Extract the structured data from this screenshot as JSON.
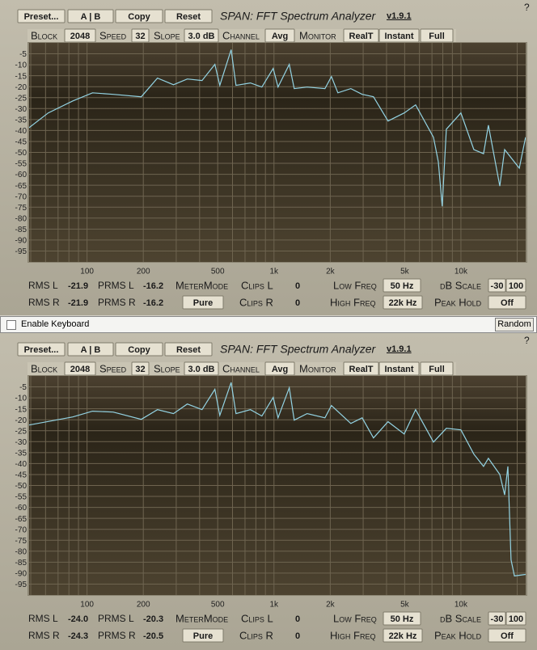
{
  "panels": [
    {
      "preset": "Preset...",
      "ab": "A | B",
      "copy": "Copy",
      "reset": "Reset",
      "title": "SPAN: FFT Spectrum Analyzer",
      "version": "v1.9.1",
      "help": "?",
      "block_label": "Block",
      "block": "2048",
      "speed_label": "Speed",
      "speed": "32",
      "slope_label": "Slope",
      "slope": "3.0 dB",
      "channel_label": "Channel",
      "channel": "Avg",
      "monitor_label": "Monitor",
      "realt": "RealT",
      "instant": "Instant",
      "full": "Full",
      "rms_l_label": "RMS L",
      "rms_l": "-21.9",
      "prms_l_label": "PRMS L",
      "prms_l": "-16.2",
      "metermode_label": "MeterMode",
      "clips_l_label": "Clips L",
      "clips_l": "0",
      "low_freq_label": "Low Freq",
      "low_freq": "50 Hz",
      "db_scale_label": "dB Scale",
      "db_min": "-30",
      "db_max": "100",
      "rms_r_label": "RMS R",
      "rms_r": "-21.9",
      "prms_r_label": "PRMS R",
      "prms_r": "-16.2",
      "metermode": "Pure",
      "clips_r_label": "Clips R",
      "clips_r": "0",
      "high_freq_label": "High Freq",
      "high_freq": "22k Hz",
      "peak_hold_label": "Peak Hold",
      "peak_hold": "Off",
      "spectrum": {
        "type": "line",
        "log_x": true,
        "color": "#93d3e3",
        "xlim": [
          49,
          22200
        ],
        "ylim": [
          -100,
          0
        ],
        "yticks": [
          -5,
          -10,
          -15,
          -20,
          -25,
          -30,
          -35,
          -40,
          -45,
          -50,
          -55,
          -60,
          -65,
          -70,
          -75,
          -80,
          -85,
          -90,
          -95
        ],
        "xticks": [
          100,
          200,
          500,
          {
            "value": 1000,
            "label": "1k"
          },
          {
            "value": 2000,
            "label": "2k"
          },
          {
            "value": 5000,
            "label": "5k"
          },
          {
            "value": 10000,
            "label": "10k"
          }
        ],
        "xgrid": [
          50,
          60,
          70,
          80,
          90,
          100,
          200,
          300,
          400,
          500,
          600,
          700,
          800,
          900,
          1000,
          2000,
          3000,
          4000,
          5000,
          6000,
          7000,
          8000,
          9000,
          10000,
          20000
        ],
        "x": [
          49,
          62,
          84,
          107,
          138,
          195,
          238,
          290,
          344,
          412,
          483,
          513,
          590,
          626,
          748,
          861,
          990,
          1051,
          1208,
          1283,
          1504,
          1873,
          2028,
          2197,
          2576,
          2963,
          3406,
          4074,
          4975,
          5724,
          7129,
          7568,
          7943,
          8356,
          10000,
          11722,
          13213,
          14028,
          16144,
          17139,
          20512,
          22182
        ],
        "values": [
          -38.7,
          -32.0,
          -26.5,
          -22.8,
          -23.5,
          -24.6,
          -16.1,
          -19.1,
          -16.5,
          -17.2,
          -9.8,
          -19.4,
          -3.1,
          -19.4,
          -18.3,
          -20.2,
          -11.7,
          -20.2,
          -9.8,
          -20.9,
          -20.2,
          -20.9,
          -15.4,
          -22.8,
          -20.9,
          -23.5,
          -24.6,
          -35.7,
          -32.0,
          -28.3,
          -43.1,
          -54.3,
          -74.6,
          -39.4,
          -32.0,
          -48.7,
          -50.6,
          -37.6,
          -65.4,
          -48.7,
          -57.2,
          -43.1
        ]
      }
    },
    {
      "preset": "Preset...",
      "ab": "A | B",
      "copy": "Copy",
      "reset": "Reset",
      "title": "SPAN: FFT Spectrum Analyzer",
      "version": "v1.9.1",
      "help": "?",
      "block_label": "Block",
      "block": "2048",
      "speed_label": "Speed",
      "speed": "32",
      "slope_label": "Slope",
      "slope": "3.0 dB",
      "channel_label": "Channel",
      "channel": "Avg",
      "monitor_label": "Monitor",
      "realt": "RealT",
      "instant": "Instant",
      "full": "Full",
      "rms_l_label": "RMS L",
      "rms_l": "-24.0",
      "prms_l_label": "PRMS L",
      "prms_l": "-20.3",
      "metermode_label": "MeterMode",
      "clips_l_label": "Clips L",
      "clips_l": "0",
      "low_freq_label": "Low Freq",
      "low_freq": "50 Hz",
      "db_scale_label": "dB Scale",
      "db_min": "-30",
      "db_max": "100",
      "rms_r_label": "RMS R",
      "rms_r": "-24.3",
      "prms_r_label": "PRMS R",
      "prms_r": "-20.5",
      "metermode": "Pure",
      "clips_r_label": "Clips R",
      "clips_r": "0",
      "high_freq_label": "High Freq",
      "high_freq": "22k Hz",
      "peak_hold_label": "Peak Hold",
      "peak_hold": "Off",
      "spectrum": {
        "type": "line",
        "log_x": true,
        "color": "#93d3e3",
        "xlim": [
          49,
          22200
        ],
        "ylim": [
          -100,
          0
        ],
        "yticks": [
          -5,
          -10,
          -15,
          -20,
          -25,
          -30,
          -35,
          -40,
          -45,
          -50,
          -55,
          -60,
          -65,
          -70,
          -75,
          -80,
          -85,
          -90,
          -95
        ],
        "xticks": [
          100,
          200,
          500,
          {
            "value": 1000,
            "label": "1k"
          },
          {
            "value": 2000,
            "label": "2k"
          },
          {
            "value": 5000,
            "label": "5k"
          },
          {
            "value": 10000,
            "label": "10k"
          }
        ],
        "xgrid": [
          50,
          60,
          70,
          80,
          90,
          100,
          200,
          300,
          400,
          500,
          600,
          700,
          800,
          900,
          1000,
          2000,
          3000,
          4000,
          5000,
          6000,
          7000,
          8000,
          9000,
          10000,
          20000
        ],
        "x": [
          49,
          84,
          107,
          138,
          195,
          238,
          290,
          344,
          412,
          483,
          513,
          590,
          626,
          748,
          861,
          990,
          1051,
          1208,
          1283,
          1504,
          1873,
          2028,
          2576,
          2963,
          3406,
          4074,
          4975,
          5724,
          7129,
          8356,
          10000,
          11722,
          13213,
          14028,
          16144,
          17139,
          17830,
          18540,
          19320,
          22182
        ],
        "values": [
          -22.4,
          -18.7,
          -16.1,
          -16.5,
          -19.8,
          -15.4,
          -17.2,
          -12.8,
          -15.4,
          -6.1,
          -18.0,
          -3.0,
          -17.2,
          -15.4,
          -18.3,
          -9.8,
          -19.1,
          -5.4,
          -20.2,
          -17.2,
          -19.1,
          -13.5,
          -21.7,
          -19.1,
          -28.3,
          -20.9,
          -26.5,
          -15.4,
          -30.2,
          -23.9,
          -24.6,
          -35.7,
          -41.3,
          -37.6,
          -45.0,
          -54.3,
          -41.3,
          -83.9,
          -91.3,
          -90.6
        ]
      }
    }
  ],
  "keyboard_bar": {
    "enable_keyboard": "Enable Keyboard",
    "random": "Random"
  }
}
